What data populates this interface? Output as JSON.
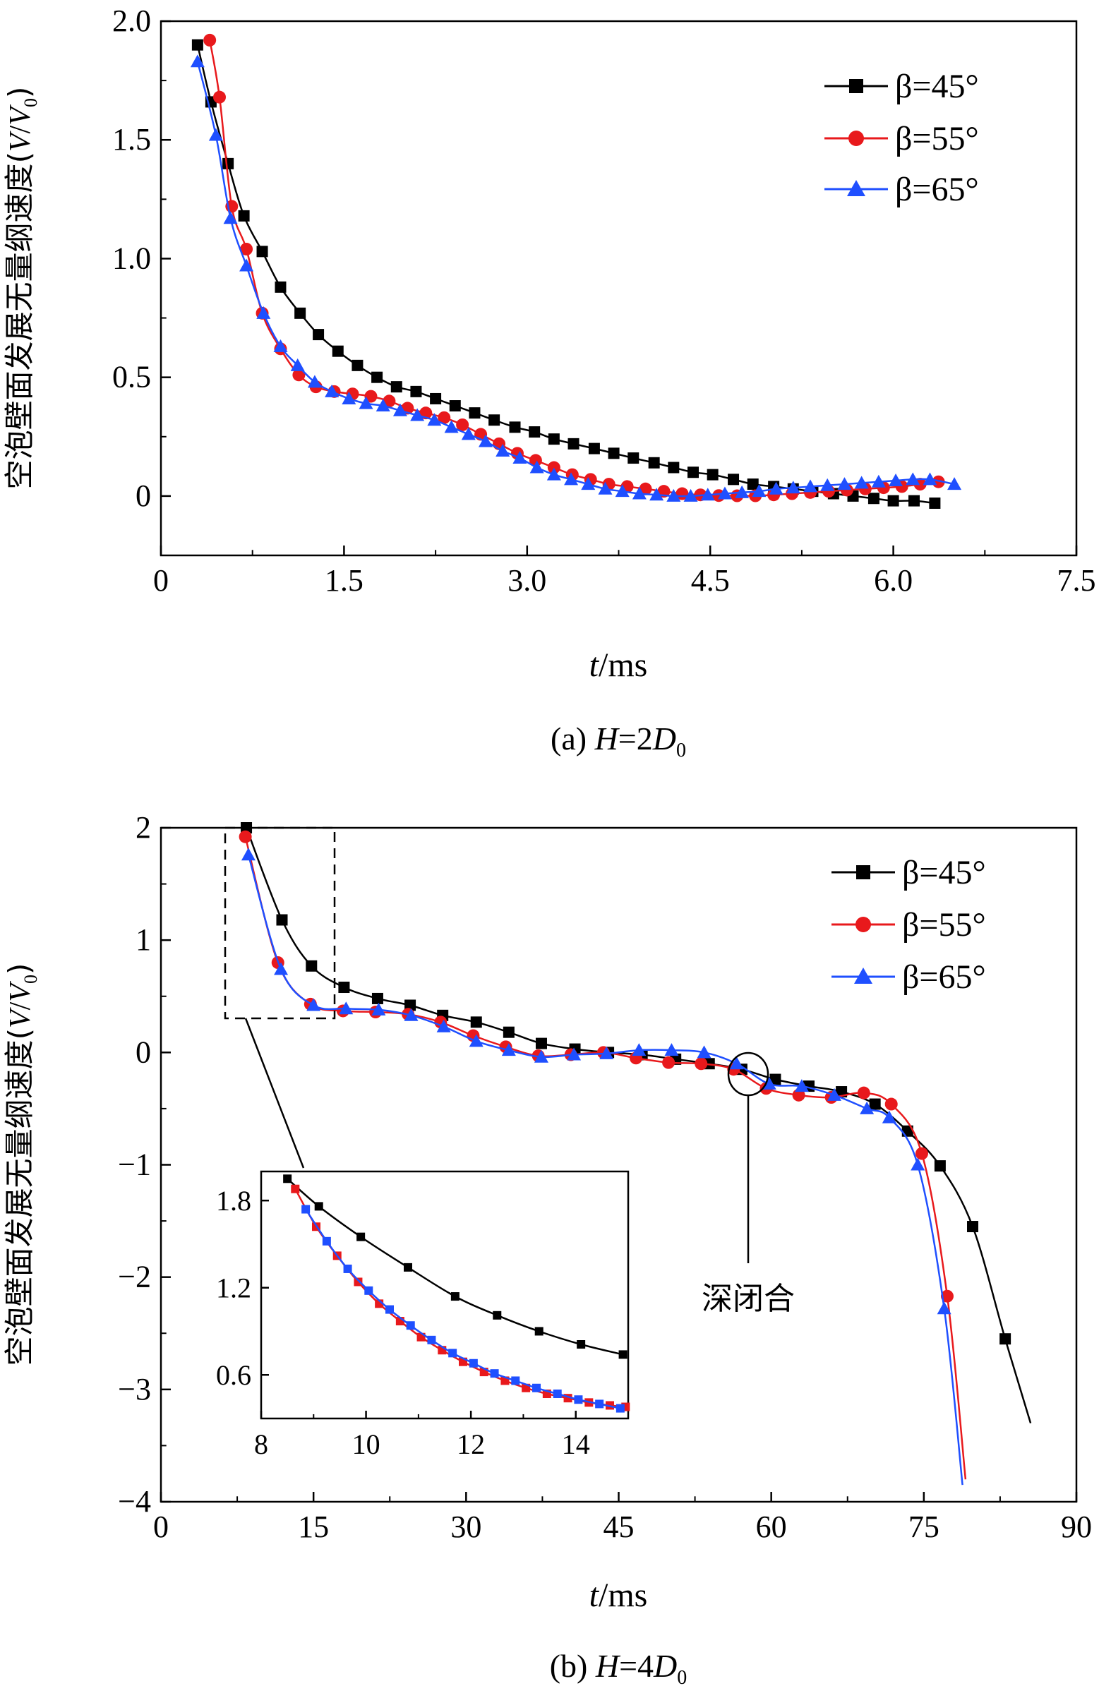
{
  "chart_data": [
    {
      "type": "line",
      "caption": "(a) H=2D0",
      "caption_parts": {
        "label": "(a) ",
        "var": "H",
        "eq": "=2",
        "sym": "D",
        "sub": "0"
      },
      "title": "",
      "xlabel": "t/ms",
      "xlabel_parts": {
        "var": "t",
        "unit": "/ms"
      },
      "ylabel": "空泡壁面发展无量纲速度(V/V0)",
      "ylabel_parts": {
        "text": "空泡壁面发展无量纲速度(",
        "v1": "V",
        "slash": "/",
        "v2": "V",
        "sub": "0",
        "close": ")"
      },
      "xlim": [
        0,
        7.5
      ],
      "ylim": [
        -0.25,
        2.0
      ],
      "xticks": [
        "0",
        "1.5",
        "3.0",
        "4.5",
        "6.0",
        "7.5"
      ],
      "xtick_values": [
        0,
        1.5,
        3.0,
        4.5,
        6.0,
        7.5
      ],
      "yticks": [
        "0",
        "0.5",
        "1.0",
        "1.5",
        "2.0"
      ],
      "ytick_values": [
        0,
        0.5,
        1.0,
        1.5,
        2.0
      ],
      "legend_position": "top-right",
      "series": [
        {
          "name": "β=45°",
          "color": "#000000",
          "marker": "square",
          "x": [
            0.3,
            0.41,
            0.55,
            0.68,
            0.83,
            0.98,
            1.14,
            1.29,
            1.45,
            1.61,
            1.77,
            1.93,
            2.09,
            2.25,
            2.41,
            2.57,
            2.73,
            2.9,
            3.06,
            3.22,
            3.38,
            3.55,
            3.71,
            3.87,
            4.04,
            4.2,
            4.36,
            4.52,
            4.69,
            4.85,
            5.02,
            5.18,
            5.34,
            5.51,
            5.67,
            5.84,
            6.0,
            6.17,
            6.34
          ],
          "y": [
            1.9,
            1.66,
            1.4,
            1.18,
            1.03,
            0.88,
            0.77,
            0.68,
            0.61,
            0.55,
            0.5,
            0.46,
            0.44,
            0.41,
            0.38,
            0.35,
            0.32,
            0.29,
            0.27,
            0.24,
            0.22,
            0.2,
            0.18,
            0.16,
            0.14,
            0.12,
            0.1,
            0.09,
            0.07,
            0.05,
            0.04,
            0.03,
            0.02,
            0.01,
            0.0,
            -0.01,
            -0.02,
            -0.02,
            -0.03
          ]
        },
        {
          "name": "β=55°",
          "color": "#e8191c",
          "marker": "circle",
          "x": [
            0.4,
            0.48,
            0.58,
            0.7,
            0.83,
            0.98,
            1.13,
            1.27,
            1.42,
            1.57,
            1.72,
            1.87,
            2.02,
            2.17,
            2.32,
            2.47,
            2.62,
            2.77,
            2.92,
            3.07,
            3.22,
            3.37,
            3.52,
            3.67,
            3.82,
            3.97,
            4.12,
            4.27,
            4.42,
            4.57,
            4.72,
            4.87,
            5.02,
            5.17,
            5.32,
            5.47,
            5.62,
            5.77,
            5.92,
            6.07,
            6.22,
            6.37
          ],
          "y": [
            1.92,
            1.68,
            1.22,
            1.04,
            0.77,
            0.62,
            0.51,
            0.46,
            0.44,
            0.43,
            0.42,
            0.4,
            0.37,
            0.35,
            0.33,
            0.3,
            0.26,
            0.22,
            0.18,
            0.15,
            0.12,
            0.09,
            0.07,
            0.05,
            0.04,
            0.03,
            0.02,
            0.01,
            0.005,
            0.002,
            0.001,
            0.001,
            0.005,
            0.01,
            0.015,
            0.02,
            0.025,
            0.03,
            0.035,
            0.04,
            0.05,
            0.06
          ]
        },
        {
          "name": "β=65°",
          "color": "#1f4fff",
          "marker": "triangle",
          "x": [
            0.3,
            0.45,
            0.57,
            0.7,
            0.84,
            0.98,
            1.12,
            1.26,
            1.4,
            1.54,
            1.68,
            1.82,
            1.96,
            2.1,
            2.24,
            2.38,
            2.52,
            2.66,
            2.8,
            2.94,
            3.08,
            3.22,
            3.36,
            3.5,
            3.64,
            3.78,
            3.92,
            4.06,
            4.2,
            4.34,
            4.48,
            4.62,
            4.76,
            4.9,
            5.04,
            5.18,
            5.32,
            5.46,
            5.6,
            5.74,
            5.88,
            6.02,
            6.16,
            6.3,
            6.5
          ],
          "y": [
            1.83,
            1.52,
            1.17,
            0.97,
            0.77,
            0.63,
            0.55,
            0.48,
            0.44,
            0.41,
            0.39,
            0.38,
            0.36,
            0.34,
            0.32,
            0.29,
            0.26,
            0.23,
            0.19,
            0.16,
            0.12,
            0.09,
            0.07,
            0.05,
            0.03,
            0.02,
            0.01,
            0.005,
            0.0,
            0.0,
            0.005,
            0.01,
            0.015,
            0.02,
            0.03,
            0.035,
            0.04,
            0.045,
            0.05,
            0.055,
            0.06,
            0.065,
            0.07,
            0.07,
            0.05
          ]
        }
      ]
    },
    {
      "type": "line",
      "caption": "(b) H=4D0",
      "caption_parts": {
        "label": "(b) ",
        "var": "H",
        "eq": "=4",
        "sym": "D",
        "sub": "0"
      },
      "title": "",
      "xlabel": "t/ms",
      "xlabel_parts": {
        "var": "t",
        "unit": "/ms"
      },
      "ylabel": "空泡壁面发展无量纲速度(V/V0)",
      "ylabel_parts": {
        "text": "空泡壁面发展无量纲速度(",
        "v1": "V",
        "slash": "/",
        "v2": "V",
        "sub": "0",
        "close": ")"
      },
      "xlim": [
        0,
        90
      ],
      "ylim": [
        -4,
        2
      ],
      "xticks": [
        "0",
        "15",
        "30",
        "45",
        "60",
        "75",
        "90"
      ],
      "xtick_values": [
        0,
        15,
        30,
        45,
        60,
        75,
        90
      ],
      "yticks": [
        "−4",
        "−3",
        "−2",
        "−1",
        "0",
        "1",
        "2"
      ],
      "ytick_values": [
        -4,
        -3,
        -2,
        -1,
        0,
        1,
        2
      ],
      "legend_position": "top-right",
      "annotation": {
        "text": "深闭合",
        "x": 57.7,
        "y": -0.2
      },
      "zoom_box": {
        "x": [
          6.5,
          17.5
        ],
        "y": [
          0.3,
          2.0
        ]
      },
      "series": [
        {
          "name": "β=45°",
          "color": "#000000",
          "marker": "square",
          "x": [
            8.4,
            11.9,
            14.8,
            18.0,
            21.3,
            24.5,
            27.7,
            31.0,
            34.2,
            37.4,
            40.7,
            44.0,
            47.3,
            50.6,
            53.9,
            57.1,
            60.4,
            63.7,
            66.9,
            70.2,
            73.4,
            76.6,
            79.8,
            83.0,
            85.5
          ],
          "y": [
            2.0,
            1.18,
            0.77,
            0.58,
            0.48,
            0.42,
            0.33,
            0.27,
            0.18,
            0.08,
            0.03,
            0.0,
            -0.02,
            -0.06,
            -0.1,
            -0.15,
            -0.24,
            -0.3,
            -0.35,
            -0.46,
            -0.7,
            -1.01,
            -1.55,
            -2.55,
            -3.3
          ],
          "markers_until": 83.0
        },
        {
          "name": "β=55°",
          "color": "#e8191c",
          "marker": "circle",
          "x": [
            8.3,
            11.5,
            14.7,
            17.9,
            21.1,
            24.3,
            27.5,
            30.7,
            33.9,
            37.1,
            40.3,
            43.5,
            46.7,
            49.9,
            53.1,
            56.3,
            59.5,
            62.7,
            65.9,
            69.1,
            71.8,
            74.8,
            77.3,
            79.1
          ],
          "y": [
            1.92,
            0.8,
            0.43,
            0.37,
            0.36,
            0.34,
            0.27,
            0.15,
            0.05,
            -0.03,
            -0.02,
            0.0,
            -0.05,
            -0.09,
            -0.1,
            -0.15,
            -0.32,
            -0.38,
            -0.4,
            -0.36,
            -0.46,
            -0.9,
            -2.17,
            -3.8
          ],
          "markers_until": 77.3
        },
        {
          "name": "β=65°",
          "color": "#1f4fff",
          "marker": "triangle",
          "x": [
            8.6,
            11.8,
            15.0,
            18.2,
            21.4,
            24.6,
            27.8,
            31.0,
            34.2,
            37.4,
            40.6,
            43.8,
            47.0,
            50.2,
            53.4,
            56.6,
            59.8,
            63.0,
            66.2,
            69.4,
            71.6,
            74.4,
            77.0,
            78.8
          ],
          "y": [
            1.76,
            0.74,
            0.42,
            0.39,
            0.38,
            0.33,
            0.23,
            0.1,
            0.02,
            -0.04,
            -0.02,
            -0.01,
            0.02,
            0.02,
            0.0,
            -0.1,
            -0.28,
            -0.3,
            -0.38,
            -0.5,
            -0.58,
            -1.0,
            -2.28,
            -3.85
          ],
          "markers_until": 77.0
        }
      ],
      "inset": {
        "xlim": [
          8,
          15
        ],
        "ylim": [
          0.3,
          2.0
        ],
        "xticks": [
          "8",
          "10",
          "12",
          "14"
        ],
        "xtick_values": [
          8,
          10,
          12,
          14
        ],
        "yticks": [
          "0.6",
          "1.2",
          "1.8"
        ],
        "ytick_values": [
          0.6,
          1.2,
          1.8
        ],
        "series": [
          {
            "name": "β=45°",
            "color": "#000000",
            "marker": "square",
            "x": [
              8.5,
              9.1,
              9.9,
              10.8,
              11.7,
              12.5,
              13.3,
              14.1,
              14.9
            ],
            "y": [
              1.95,
              1.76,
              1.55,
              1.34,
              1.14,
              1.01,
              0.9,
              0.81,
              0.74
            ]
          },
          {
            "name": "β=55°",
            "color": "#e8191c",
            "marker": "square",
            "x": [
              8.65,
              9.05,
              9.45,
              9.85,
              10.25,
              10.65,
              11.05,
              11.45,
              11.85,
              12.25,
              12.65,
              13.05,
              13.45,
              13.85,
              14.25,
              14.65,
              14.95
            ],
            "y": [
              1.88,
              1.62,
              1.42,
              1.24,
              1.09,
              0.97,
              0.86,
              0.77,
              0.69,
              0.62,
              0.56,
              0.51,
              0.47,
              0.44,
              0.41,
              0.39,
              0.38
            ]
          },
          {
            "name": "β=65°",
            "color": "#1f4fff",
            "marker": "square",
            "x": [
              8.85,
              9.25,
              9.65,
              10.05,
              10.45,
              10.85,
              11.25,
              11.65,
              12.05,
              12.45,
              12.85,
              13.25,
              13.65,
              14.05,
              14.45,
              14.85
            ],
            "y": [
              1.74,
              1.52,
              1.33,
              1.18,
              1.05,
              0.94,
              0.84,
              0.75,
              0.68,
              0.61,
              0.56,
              0.51,
              0.47,
              0.43,
              0.4,
              0.37
            ]
          }
        ]
      }
    }
  ]
}
